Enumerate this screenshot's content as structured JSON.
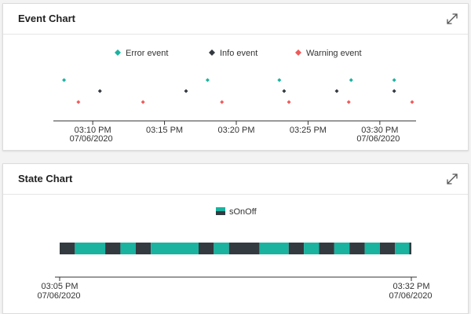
{
  "event_card": {
    "title": "Event Chart",
    "expand_icon": "expand-icon"
  },
  "state_card": {
    "title": "State Chart",
    "expand_icon": "expand-icon"
  },
  "colors": {
    "error": "#19b3a0",
    "info": "#333a40",
    "warning": "#ef5a5a",
    "state_on": "#19b3a0",
    "state_off": "#333a40"
  },
  "chart_data": [
    {
      "type": "scatter",
      "legend_position": "top-center",
      "x_range": [
        "2020-07-06 03:07:45",
        "2020-07-06 03:32:15"
      ],
      "x_ticks": [
        {
          "t": "2020-07-06 03:10:00",
          "label": "03:10 PM",
          "sublabel": "07/06/2020"
        },
        {
          "t": "2020-07-06 03:15:00",
          "label": "03:15 PM",
          "sublabel": ""
        },
        {
          "t": "2020-07-06 03:20:00",
          "label": "03:20 PM",
          "sublabel": ""
        },
        {
          "t": "2020-07-06 03:25:00",
          "label": "03:25 PM",
          "sublabel": ""
        },
        {
          "t": "2020-07-06 03:30:00",
          "label": "03:30 PM",
          "sublabel": "07/06/2020"
        }
      ],
      "series": [
        {
          "name": "Error event",
          "color_key": "error",
          "x": [
            "2020-07-06 03:08:00",
            "2020-07-06 03:18:00",
            "2020-07-06 03:23:00",
            "2020-07-06 03:28:00",
            "2020-07-06 03:31:00"
          ]
        },
        {
          "name": "Info event",
          "color_key": "info",
          "x": [
            "2020-07-06 03:10:30",
            "2020-07-06 03:16:30",
            "2020-07-06 03:23:20",
            "2020-07-06 03:27:00",
            "2020-07-06 03:31:00"
          ]
        },
        {
          "name": "Warning event",
          "color_key": "warning",
          "x": [
            "2020-07-06 03:09:00",
            "2020-07-06 03:13:30",
            "2020-07-06 03:19:00",
            "2020-07-06 03:23:40",
            "2020-07-06 03:27:50",
            "2020-07-06 03:32:15"
          ]
        }
      ]
    },
    {
      "type": "area",
      "legend_position": "top-center",
      "series_name": "sOnOff",
      "x_range": [
        "2020-07-06 03:05:00",
        "2020-07-06 03:32:00"
      ],
      "x_ticks": [
        {
          "t": "2020-07-06 03:05:00",
          "label": "03:05 PM",
          "sublabel": "07/06/2020"
        },
        {
          "t": "2020-07-06 03:32:00",
          "label": "03:32 PM",
          "sublabel": "07/06/2020"
        }
      ],
      "segments": [
        {
          "start": "2020-07-06 03:05:00",
          "end": "2020-07-06 03:06:10",
          "state": "off"
        },
        {
          "start": "2020-07-06 03:06:10",
          "end": "2020-07-06 03:08:30",
          "state": "on"
        },
        {
          "start": "2020-07-06 03:08:30",
          "end": "2020-07-06 03:09:40",
          "state": "off"
        },
        {
          "start": "2020-07-06 03:09:40",
          "end": "2020-07-06 03:10:50",
          "state": "on"
        },
        {
          "start": "2020-07-06 03:10:50",
          "end": "2020-07-06 03:12:00",
          "state": "off"
        },
        {
          "start": "2020-07-06 03:12:00",
          "end": "2020-07-06 03:15:40",
          "state": "on"
        },
        {
          "start": "2020-07-06 03:15:40",
          "end": "2020-07-06 03:16:50",
          "state": "off"
        },
        {
          "start": "2020-07-06 03:16:50",
          "end": "2020-07-06 03:18:00",
          "state": "on"
        },
        {
          "start": "2020-07-06 03:18:00",
          "end": "2020-07-06 03:20:20",
          "state": "off"
        },
        {
          "start": "2020-07-06 03:20:20",
          "end": "2020-07-06 03:22:35",
          "state": "on"
        },
        {
          "start": "2020-07-06 03:22:35",
          "end": "2020-07-06 03:23:45",
          "state": "off"
        },
        {
          "start": "2020-07-06 03:23:45",
          "end": "2020-07-06 03:24:55",
          "state": "on"
        },
        {
          "start": "2020-07-06 03:24:55",
          "end": "2020-07-06 03:26:05",
          "state": "off"
        },
        {
          "start": "2020-07-06 03:26:05",
          "end": "2020-07-06 03:27:15",
          "state": "on"
        },
        {
          "start": "2020-07-06 03:27:15",
          "end": "2020-07-06 03:28:25",
          "state": "off"
        },
        {
          "start": "2020-07-06 03:28:25",
          "end": "2020-07-06 03:29:35",
          "state": "on"
        },
        {
          "start": "2020-07-06 03:29:35",
          "end": "2020-07-06 03:30:45",
          "state": "off"
        },
        {
          "start": "2020-07-06 03:30:45",
          "end": "2020-07-06 03:31:50",
          "state": "on"
        },
        {
          "start": "2020-07-06 03:31:50",
          "end": "2020-07-06 03:32:00",
          "state": "off"
        }
      ]
    }
  ]
}
